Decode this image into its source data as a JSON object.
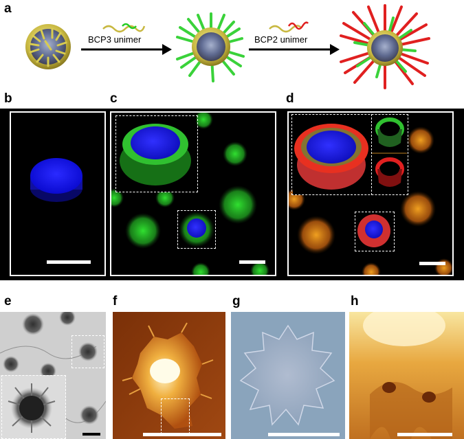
{
  "panels": {
    "a": "a",
    "b": "b",
    "c": "c",
    "d": "d",
    "e": "e",
    "f": "f",
    "g": "g",
    "h": "h"
  },
  "arrows": {
    "first": "BCP3 unimer",
    "second": "BCP2 unimer"
  },
  "colors": {
    "core_blue": "#1a1aff",
    "corona_green": "#22cc22",
    "corona_red": "#e02020",
    "micelle_yellow": "#c8b840",
    "afm_brown": "#8a3a10",
    "afm_light": "#fff0b0",
    "tem_gray": "#c8c8c8",
    "dic_blue": "#8aa8c8"
  }
}
